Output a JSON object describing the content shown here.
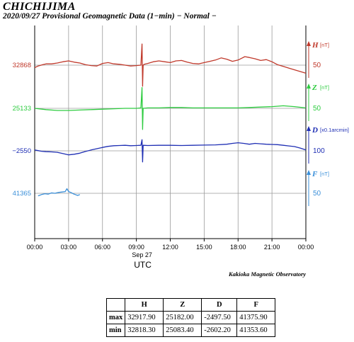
{
  "header": {
    "station": "CHICHIJIMA",
    "subtitle": "2020/09/27  Provisional Geomagnetic Data (1−min)  − Normal −"
  },
  "footer": {
    "observatory": "Kakioka Magnetic Observatory"
  },
  "chart_data": {
    "type": "line",
    "x_tick_labels": [
      "00:00",
      "03:00",
      "06:00",
      "09:00",
      "12:00",
      "15:00",
      "18:00",
      "21:00",
      "00:00"
    ],
    "x_date_label": "Sep 27",
    "xlabel": "UTC",
    "xlim_hours": [
      0,
      24
    ],
    "grid": true,
    "series": [
      {
        "name": "H",
        "unit": "[nT]",
        "scale_label": "50",
        "baseline_label": "32868",
        "color": "#c0392b",
        "x": [
          0,
          0.3,
          0.7,
          1,
          1.5,
          2,
          2.5,
          3,
          3.5,
          4,
          4.5,
          5,
          5.5,
          6,
          6.5,
          7,
          7.5,
          8,
          8.5,
          9,
          9.4,
          9.5,
          9.55,
          9.6,
          9.7,
          10,
          10.5,
          11,
          11.5,
          12,
          12.5,
          13,
          13.5,
          14,
          14.5,
          15,
          15.5,
          16,
          16.5,
          17,
          17.5,
          18,
          18.3,
          18.6,
          19,
          19.5,
          20,
          20.5,
          21,
          21.5,
          22,
          22.5,
          23,
          23.5,
          24
        ],
        "values": [
          32862,
          32866,
          32869,
          32871,
          32871,
          32873,
          32876,
          32878,
          32875,
          32873,
          32869,
          32867,
          32866,
          32872,
          32874,
          32871,
          32870,
          32868,
          32866,
          32867,
          32868,
          32917.9,
          32818.3,
          32868,
          32870,
          32872,
          32876,
          32878,
          32876,
          32874,
          32878,
          32879,
          32875,
          32872,
          32871,
          32874,
          32877,
          32880,
          32885,
          32882,
          32877,
          32880,
          32884,
          32888,
          32886,
          32883,
          32879,
          32881,
          32876,
          32869,
          32865,
          32861,
          32857,
          32853,
          32849
        ]
      },
      {
        "name": "Z",
        "unit": "[nT]",
        "scale_label": "50",
        "baseline_label": "25133",
        "color": "#2ecc40",
        "x": [
          0,
          1,
          2,
          3,
          4,
          5,
          6,
          7,
          8,
          9,
          9.4,
          9.5,
          9.55,
          9.6,
          10,
          11,
          12,
          13,
          14,
          15,
          16,
          17,
          18,
          19,
          20,
          21,
          22,
          23,
          24
        ],
        "values": [
          25133,
          25130,
          25128,
          25128,
          25129,
          25130,
          25131,
          25132,
          25133,
          25133,
          25134,
          25182,
          25083.4,
          25133,
          25134,
          25134,
          25135,
          25135,
          25134,
          25134,
          25134,
          25134,
          25134,
          25135,
          25136,
          25137,
          25139,
          25137,
          25134
        ]
      },
      {
        "name": "D",
        "unit": "[x0.1arcmin]",
        "scale_label": "100",
        "baseline_label": "−2550",
        "color": "#1f2fb4",
        "x": [
          0,
          0.3,
          0.6,
          1,
          1.5,
          2,
          2.5,
          3,
          3.5,
          4,
          4.5,
          5,
          5.5,
          6,
          6.5,
          7,
          7.5,
          8,
          8.5,
          9,
          9.4,
          9.5,
          9.55,
          9.6,
          10,
          11,
          12,
          13,
          14,
          15,
          16,
          17,
          17.5,
          18,
          18.5,
          19,
          19.5,
          20,
          20.5,
          21,
          21.5,
          22,
          22.5,
          23,
          23.5,
          24
        ],
        "values": [
          -2546,
          -2549,
          -2552,
          -2554,
          -2555,
          -2557,
          -2563,
          -2569,
          -2566,
          -2561,
          -2553,
          -2546,
          -2540,
          -2534,
          -2529,
          -2526,
          -2525,
          -2524,
          -2526,
          -2525,
          -2524,
          -2497.5,
          -2602.2,
          -2524,
          -2525,
          -2524,
          -2524,
          -2525,
          -2524,
          -2523,
          -2522,
          -2519,
          -2515,
          -2512,
          -2515,
          -2519,
          -2515,
          -2517,
          -2519,
          -2520,
          -2521,
          -2524,
          -2527,
          -2530,
          -2537,
          -2546
        ]
      },
      {
        "name": "F",
        "unit": "[nT]",
        "scale_label": "50",
        "baseline_label": "41365",
        "color": "#3a8fd9",
        "x": [
          0.3,
          0.6,
          0.9,
          1.2,
          1.5,
          1.8,
          2.1,
          2.4,
          2.7,
          2.85,
          3.0,
          3.2,
          3.4,
          3.6,
          3.8,
          4.0
        ],
        "values": [
          41359,
          41362,
          41364,
          41363,
          41366,
          41365,
          41367,
          41368,
          41369,
          41375.9,
          41369,
          41367,
          41364,
          41362,
          41360,
          41362
        ]
      }
    ],
    "stats_table": {
      "headers": [
        "",
        "H",
        "Z",
        "D",
        "F"
      ],
      "rows": [
        [
          "max",
          "32917.90",
          "25182.00",
          "-2497.50",
          "41375.90"
        ],
        [
          "min",
          "32818.30",
          "25083.40",
          "-2602.20",
          "41353.60"
        ]
      ]
    }
  }
}
